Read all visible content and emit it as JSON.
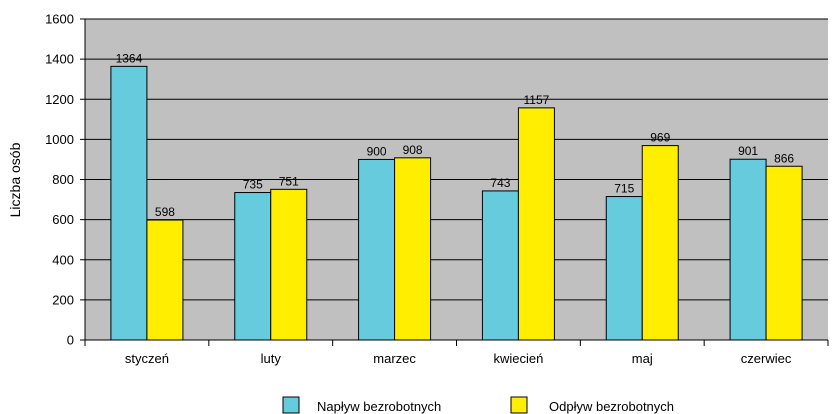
{
  "chart_data": {
    "type": "bar",
    "title": "",
    "xlabel": "",
    "ylabel": "Liczba osób",
    "ylim": [
      0,
      1600
    ],
    "yticks": [
      0,
      200,
      400,
      600,
      800,
      1000,
      1200,
      1400,
      1600
    ],
    "categories": [
      "styczeń",
      "luty",
      "marzec",
      "kwiecień",
      "maj",
      "czerwiec"
    ],
    "series": [
      {
        "name": "Napływ bezrobotnych",
        "color": "#66CCDD",
        "values": [
          1364,
          735,
          900,
          743,
          715,
          901
        ]
      },
      {
        "name": "Odpływ bezrobotnych",
        "color": "#FFEE00",
        "values": [
          598,
          751,
          908,
          1157,
          969,
          866
        ]
      }
    ],
    "grid": true,
    "legend_position": "bottom",
    "plot_background": "#C0C0C0"
  }
}
